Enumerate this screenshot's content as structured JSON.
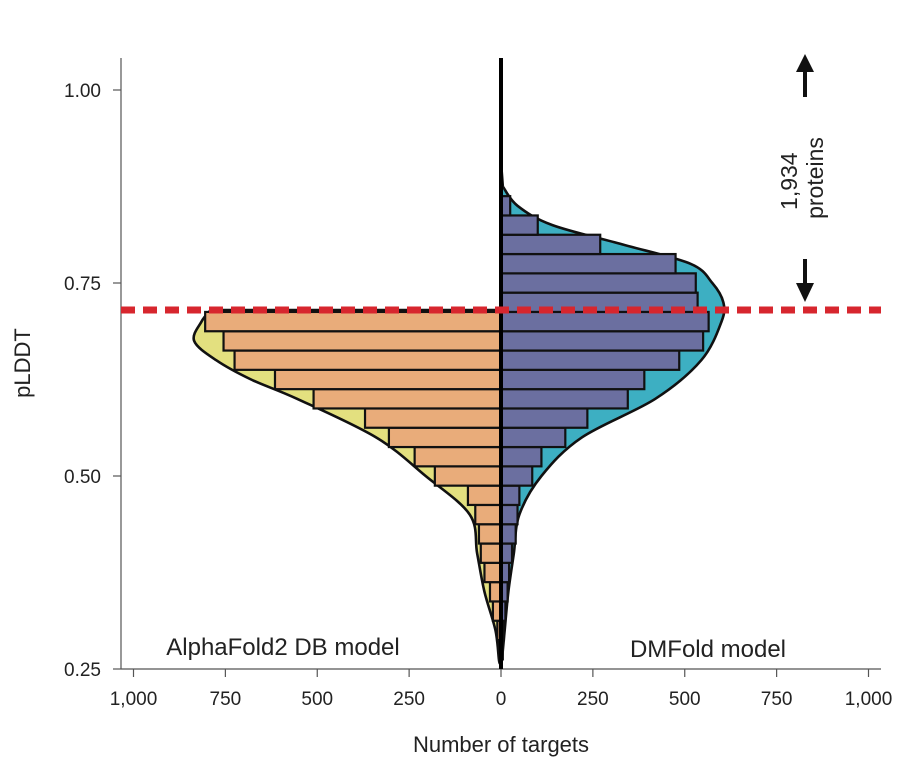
{
  "chart_data": {
    "type": "bar",
    "orientation": "horizontal-butterfly",
    "xlabel": "Number of targets",
    "ylabel": "pLDDT",
    "xlim": [
      -1000,
      1000
    ],
    "ylim": [
      0.25,
      1.05
    ],
    "x_ticks": [
      -1000,
      -750,
      -500,
      -250,
      0,
      250,
      500,
      750,
      1000
    ],
    "x_tick_labels": [
      "1,000",
      "750",
      "500",
      "250",
      "0",
      "250",
      "500",
      "750",
      "1,000"
    ],
    "y_ticks": [
      0.25,
      0.5,
      0.75,
      1.0
    ],
    "y_tick_labels": [
      "0.25",
      "0.50",
      "0.75",
      "1.00"
    ],
    "bin_width": 0.025,
    "threshold": 0.715,
    "annotation": {
      "line1": "1,934",
      "line2": "proteins"
    },
    "colors": {
      "left_bar": "#E9AC7A",
      "left_density": "#E3E07F",
      "right_bar": "#6B6FA0",
      "right_density": "#3DAFC2",
      "threshold_line": "#D7262E",
      "bar_outline": "#111111"
    },
    "series": [
      {
        "name": "AlphaFold2 DB model",
        "side": "left",
        "bins": [
          {
            "y": 0.275,
            "value": 5
          },
          {
            "y": 0.3,
            "value": 10
          },
          {
            "y": 0.325,
            "value": 22
          },
          {
            "y": 0.35,
            "value": 30
          },
          {
            "y": 0.375,
            "value": 45
          },
          {
            "y": 0.4,
            "value": 55
          },
          {
            "y": 0.425,
            "value": 60
          },
          {
            "y": 0.45,
            "value": 70
          },
          {
            "y": 0.475,
            "value": 90
          },
          {
            "y": 0.5,
            "value": 180
          },
          {
            "y": 0.525,
            "value": 235
          },
          {
            "y": 0.55,
            "value": 305
          },
          {
            "y": 0.575,
            "value": 370
          },
          {
            "y": 0.6,
            "value": 510
          },
          {
            "y": 0.625,
            "value": 615
          },
          {
            "y": 0.65,
            "value": 725
          },
          {
            "y": 0.675,
            "value": 755
          },
          {
            "y": 0.7,
            "value": 805
          }
        ],
        "density": [
          {
            "y": 0.26,
            "value": 5
          },
          {
            "y": 0.3,
            "value": 15
          },
          {
            "y": 0.35,
            "value": 45
          },
          {
            "y": 0.4,
            "value": 65
          },
          {
            "y": 0.45,
            "value": 85
          },
          {
            "y": 0.5,
            "value": 205
          },
          {
            "y": 0.55,
            "value": 340
          },
          {
            "y": 0.6,
            "value": 555
          },
          {
            "y": 0.625,
            "value": 680
          },
          {
            "y": 0.65,
            "value": 775
          },
          {
            "y": 0.675,
            "value": 835
          },
          {
            "y": 0.7,
            "value": 815
          },
          {
            "y": 0.715,
            "value": 790
          }
        ]
      },
      {
        "name": "DMFold model",
        "side": "right",
        "bins": [
          {
            "y": 0.275,
            "value": 5
          },
          {
            "y": 0.3,
            "value": 8
          },
          {
            "y": 0.325,
            "value": 12
          },
          {
            "y": 0.35,
            "value": 18
          },
          {
            "y": 0.375,
            "value": 22
          },
          {
            "y": 0.4,
            "value": 30
          },
          {
            "y": 0.425,
            "value": 40
          },
          {
            "y": 0.45,
            "value": 45
          },
          {
            "y": 0.475,
            "value": 50
          },
          {
            "y": 0.5,
            "value": 85
          },
          {
            "y": 0.525,
            "value": 110
          },
          {
            "y": 0.55,
            "value": 175
          },
          {
            "y": 0.575,
            "value": 235
          },
          {
            "y": 0.6,
            "value": 345
          },
          {
            "y": 0.625,
            "value": 390
          },
          {
            "y": 0.65,
            "value": 485
          },
          {
            "y": 0.675,
            "value": 550
          },
          {
            "y": 0.7,
            "value": 565
          },
          {
            "y": 0.725,
            "value": 535
          },
          {
            "y": 0.75,
            "value": 530
          },
          {
            "y": 0.775,
            "value": 475
          },
          {
            "y": 0.8,
            "value": 270
          },
          {
            "y": 0.825,
            "value": 100
          },
          {
            "y": 0.85,
            "value": 25
          }
        ],
        "density": [
          {
            "y": 0.26,
            "value": 2
          },
          {
            "y": 0.3,
            "value": 10
          },
          {
            "y": 0.35,
            "value": 20
          },
          {
            "y": 0.4,
            "value": 35
          },
          {
            "y": 0.45,
            "value": 50
          },
          {
            "y": 0.5,
            "value": 110
          },
          {
            "y": 0.55,
            "value": 220
          },
          {
            "y": 0.6,
            "value": 420
          },
          {
            "y": 0.65,
            "value": 545
          },
          {
            "y": 0.7,
            "value": 600
          },
          {
            "y": 0.725,
            "value": 605
          },
          {
            "y": 0.75,
            "value": 575
          },
          {
            "y": 0.775,
            "value": 515
          },
          {
            "y": 0.8,
            "value": 330
          },
          {
            "y": 0.825,
            "value": 140
          },
          {
            "y": 0.85,
            "value": 45
          },
          {
            "y": 0.875,
            "value": 5
          }
        ]
      }
    ]
  }
}
